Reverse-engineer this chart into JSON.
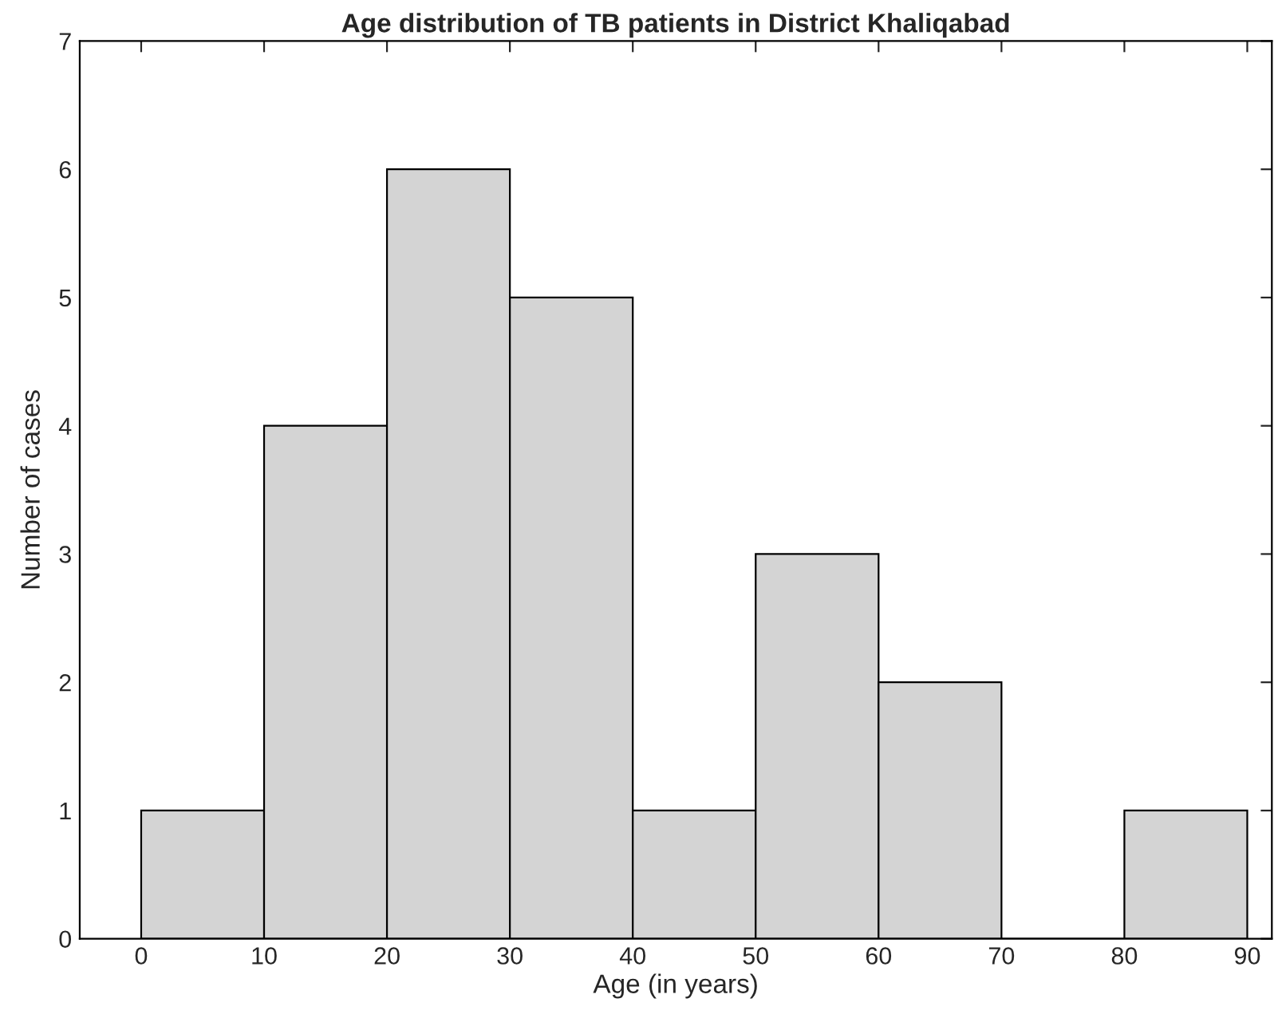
{
  "chart_data": {
    "type": "histogram",
    "title": "Age distribution of TB patients in District Khaliqabad",
    "xlabel": "Age (in years)",
    "ylabel": "Number of cases",
    "bins": [
      0,
      10,
      20,
      30,
      40,
      50,
      60,
      70,
      80,
      90
    ],
    "values": [
      1,
      4,
      6,
      5,
      1,
      3,
      2,
      0,
      1
    ],
    "color": "#d4d4d4",
    "xlim": [
      -5,
      92
    ],
    "xticks": [
      0,
      10,
      20,
      30,
      40,
      50,
      60,
      70,
      80,
      90
    ],
    "ylim": [
      0,
      7
    ],
    "yticks": [
      0,
      1,
      2,
      3,
      4,
      5,
      6,
      7
    ],
    "grid": false,
    "legend": false
  }
}
